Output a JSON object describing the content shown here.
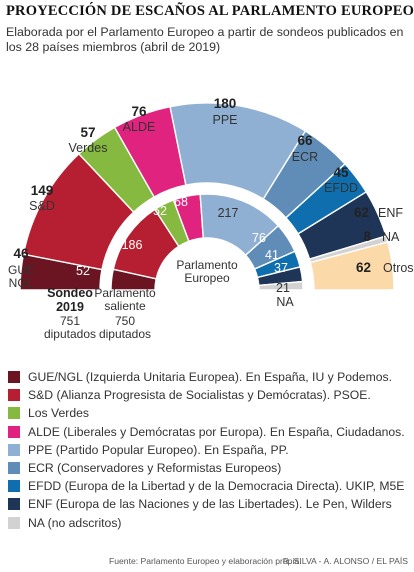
{
  "title": "PROYECCIÓN DE ESCAÑOS AL PARLAMENTO EUROPEO",
  "subtitle": "Elaborada por el Parlamento Europeo a partir de sondeos publicados en los 28 países miembros (abril de 2019)",
  "chart_data": {
    "type": "parliament-hemicycle",
    "rings": [
      {
        "name": "Sondeo 2019",
        "total_label": "751 diputados",
        "series": [
          {
            "group": "GUE/NGL",
            "seats": 46,
            "color": "#6b1523"
          },
          {
            "group": "S&D",
            "seats": 149,
            "color": "#b51f31"
          },
          {
            "group": "Verdes",
            "seats": 57,
            "color": "#86b940"
          },
          {
            "group": "ALDE",
            "seats": 76,
            "color": "#e0237e"
          },
          {
            "group": "PPE",
            "seats": 180,
            "color": "#8fb0d2"
          },
          {
            "group": "ECR",
            "seats": 66,
            "color": "#5f8db7"
          },
          {
            "group": "EFDD",
            "seats": 45,
            "color": "#0f6fae"
          },
          {
            "group": "ENF",
            "seats": 62,
            "color": "#1e3557"
          },
          {
            "group": "NA",
            "seats": 8,
            "color": "#d2d2d2"
          },
          {
            "group": "Otros",
            "seats": 62,
            "color": "#fbd9a9"
          }
        ]
      },
      {
        "name": "Parlamento saliente",
        "total_label": "750 diputados",
        "series": [
          {
            "group": "GUE/NGL",
            "seats": 52,
            "color": "#6b1523"
          },
          {
            "group": "S&D",
            "seats": 186,
            "color": "#b51f31"
          },
          {
            "group": "Verdes",
            "seats": 52,
            "color": "#86b940"
          },
          {
            "group": "ALDE",
            "seats": 68,
            "color": "#e0237e"
          },
          {
            "group": "PPE",
            "seats": 217,
            "color": "#8fb0d2"
          },
          {
            "group": "ECR",
            "seats": 76,
            "color": "#5f8db7"
          },
          {
            "group": "EFDD",
            "seats": 41,
            "color": "#0f6fae"
          },
          {
            "group": "ENF",
            "seats": 37,
            "color": "#1e3557"
          },
          {
            "group": "NA",
            "seats": 21,
            "color": "#d2d2d2"
          }
        ]
      }
    ],
    "outer_labels": [
      {
        "value": "46",
        "name": "GUE\nNGL"
      },
      {
        "value": "149",
        "name": "S&D"
      },
      {
        "value": "57",
        "name": "Verdes"
      },
      {
        "value": "76",
        "name": "ALDE"
      },
      {
        "value": "180",
        "name": "PPE"
      },
      {
        "value": "66",
        "name": "ECR"
      },
      {
        "value": "45",
        "name": "EFDD"
      },
      {
        "value": "62",
        "name": "ENF"
      },
      {
        "value": "8",
        "name": "NA"
      },
      {
        "value": "62",
        "name": "Otros"
      }
    ],
    "inner_labels": [
      "52",
      "186",
      "52",
      "68",
      "217",
      "76",
      "41",
      "37",
      "21",
      "NA"
    ],
    "center_label": "Parlamento\nEuropeo",
    "ring_labels": {
      "outer_title": "Sondeo\n2019",
      "outer_total": "751\ndiputados",
      "inner_title": "Parlamento\nsaliente",
      "inner_total": "750\ndiputados"
    }
  },
  "legend": [
    {
      "text": "GUE/NGL (Izquierda Unitaria Europea). En España, IU y Podemos.",
      "color": "#6b1523"
    },
    {
      "text": "S&D (Alianza Progresista de Socialistas y Demócratas). PSOE.",
      "color": "#b51f31"
    },
    {
      "text": "Los Verdes",
      "color": "#86b940"
    },
    {
      "text": "ALDE (Liberales y Demócratas por Europa). En España, Ciudadanos.",
      "color": "#e0237e"
    },
    {
      "text": "PPE (Partido Popular Europeo). En España, PP.",
      "color": "#8fb0d2"
    },
    {
      "text": "ECR (Conservadores y Reformistas Europeos)",
      "color": "#5f8db7"
    },
    {
      "text": "EFDD (Europa de la Libertad y de la Democracia Directa). UKIP, M5E",
      "color": "#0f6fae"
    },
    {
      "text": "ENF (Europa de las Naciones y de las Libertades). Le Pen, Wilders",
      "color": "#1e3557"
    },
    {
      "text": "NA (no adscritos)",
      "color": "#d2d2d2"
    }
  ],
  "footer": {
    "source": "Fuente: Parlamento Europeo y elaboración propia.",
    "credit": "R. SILVA - A. ALONSO / EL PAÍS"
  }
}
